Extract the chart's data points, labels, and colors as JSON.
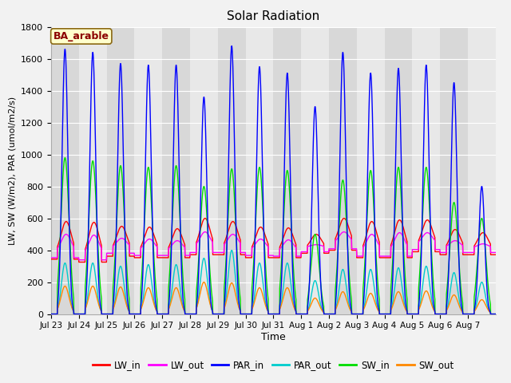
{
  "title": "Solar Radiation",
  "xlabel": "Time",
  "ylabel": "LW, SW (W/m2), PAR (umol/m2/s)",
  "ylim": [
    0,
    1800
  ],
  "yticks": [
    0,
    200,
    400,
    600,
    800,
    1000,
    1200,
    1400,
    1600,
    1800
  ],
  "xtick_labels": [
    "Jul 23",
    "Jul 24",
    "Jul 25",
    "Jul 26",
    "Jul 27",
    "Jul 28",
    "Jul 29",
    "Jul 30",
    "Jul 31",
    "Aug 1",
    "Aug 2",
    "Aug 3",
    "Aug 4",
    "Aug 5",
    "Aug 6",
    "Aug 7"
  ],
  "label_box": "BA_arable",
  "series": {
    "LW_in": {
      "color": "#ff0000",
      "lw": 1.0
    },
    "LW_out": {
      "color": "#ff00ff",
      "lw": 1.0
    },
    "PAR_in": {
      "color": "#0000ff",
      "lw": 1.0
    },
    "PAR_out": {
      "color": "#00cccc",
      "lw": 1.0
    },
    "SW_in": {
      "color": "#00dd00",
      "lw": 1.0
    },
    "SW_out": {
      "color": "#ff8800",
      "lw": 1.0
    }
  },
  "fig_bg": "#f2f2f2",
  "ax_bg": "#e8e8e8",
  "band_color": "#d8d8d8",
  "grid_color": "#ffffff",
  "par_in_peaks": [
    1660,
    1640,
    1570,
    1560,
    1560,
    1360,
    1680,
    1550,
    1510,
    1300,
    1640,
    1510,
    1540,
    1560,
    1450,
    800
  ],
  "sw_in_peaks": [
    980,
    960,
    930,
    920,
    930,
    800,
    910,
    920,
    900,
    500,
    840,
    900,
    920,
    920,
    700,
    600
  ],
  "par_out_peaks": [
    320,
    320,
    300,
    310,
    310,
    350,
    400,
    320,
    320,
    210,
    280,
    280,
    290,
    300,
    260,
    200
  ],
  "sw_out_peaks": [
    175,
    175,
    170,
    165,
    165,
    200,
    195,
    165,
    165,
    100,
    140,
    130,
    140,
    145,
    120,
    90
  ],
  "lw_in_base": [
    370,
    350,
    390,
    380,
    380,
    400,
    400,
    380,
    380,
    410,
    430,
    380,
    380,
    420,
    400,
    400
  ],
  "lw_in_peak": [
    580,
    575,
    550,
    545,
    535,
    600,
    580,
    545,
    540,
    500,
    600,
    580,
    590,
    590,
    530,
    510
  ],
  "lw_out_base": [
    380,
    365,
    410,
    395,
    395,
    415,
    415,
    395,
    390,
    420,
    440,
    390,
    390,
    435,
    415,
    415
  ],
  "lw_out_peak": [
    500,
    495,
    475,
    470,
    460,
    515,
    500,
    470,
    465,
    435,
    515,
    500,
    510,
    510,
    460,
    440
  ],
  "legend_colors": {
    "LW_in": "#ff0000",
    "LW_out": "#ff00ff",
    "PAR_in": "#0000ff",
    "PAR_out": "#00cccc",
    "SW_in": "#00dd00",
    "SW_out": "#ff8800"
  }
}
